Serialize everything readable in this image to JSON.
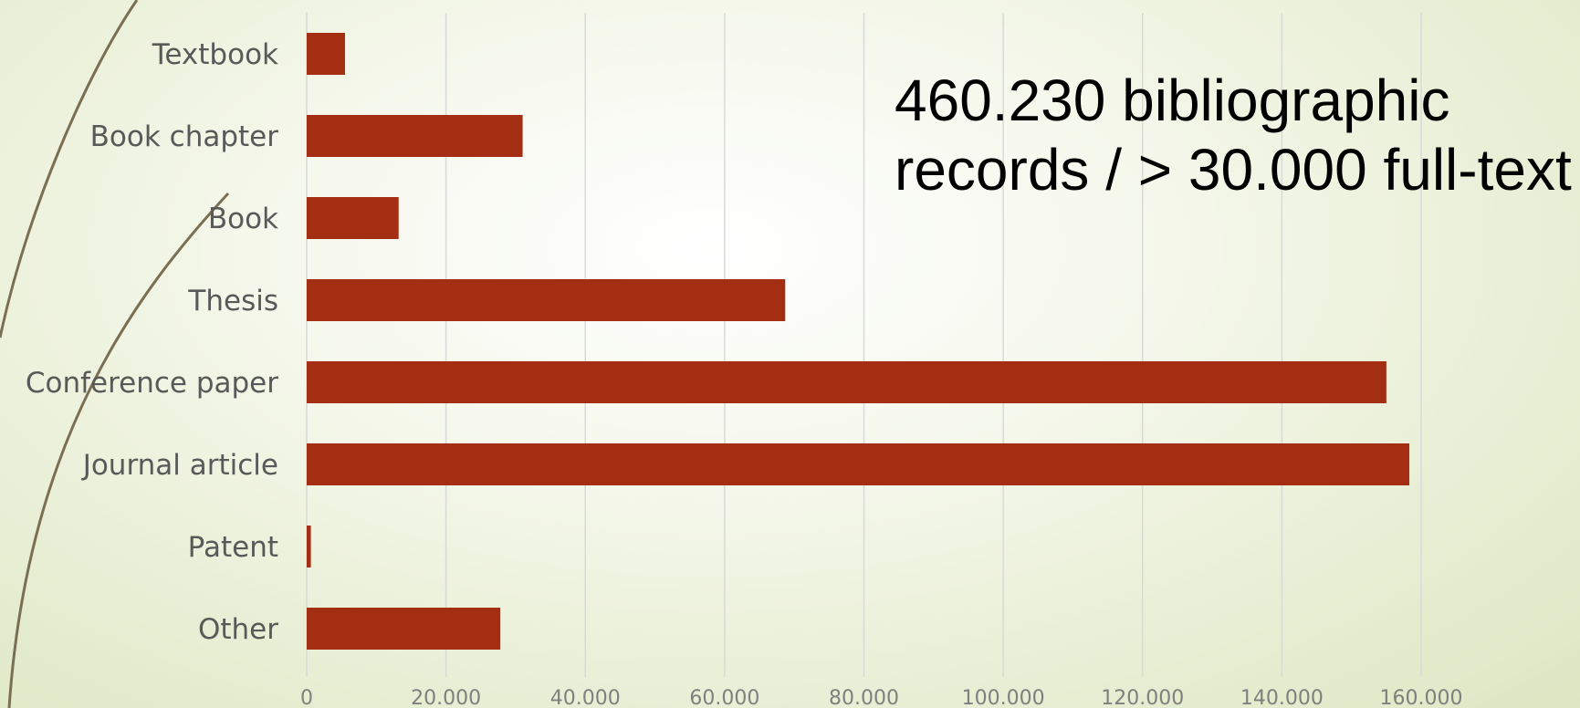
{
  "headline": {
    "line1": "460.230 bibliographic",
    "line2": "records / > 30.000 full-text"
  },
  "colors": {
    "bar": "#A32E12",
    "grid": "#d9d9d9",
    "category_text": "#595959",
    "tick_text": "#7f7f7f",
    "decoration_curve": "#7a6f52"
  },
  "chart_data": {
    "type": "bar",
    "orientation": "horizontal",
    "categories": [
      "Textbook",
      "Book chapter",
      "Book",
      "Thesis",
      "Conference paper",
      "Journal article",
      "Patent",
      "Other"
    ],
    "values": [
      5500,
      31000,
      13200,
      68700,
      155000,
      158300,
      600,
      27800
    ],
    "xlim": [
      0,
      160000
    ],
    "x_ticks": [
      0,
      20000,
      40000,
      60000,
      80000,
      100000,
      120000,
      140000,
      160000
    ],
    "x_tick_labels": [
      "0",
      "20.000",
      "40.000",
      "60.000",
      "80.000",
      "100.000",
      "120.000",
      "140.000",
      "160.000"
    ],
    "grid": true,
    "title": "",
    "xlabel": "",
    "ylabel": ""
  }
}
